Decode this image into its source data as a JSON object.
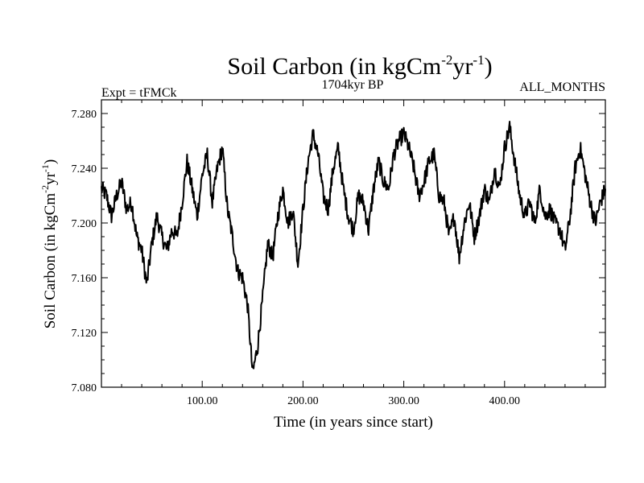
{
  "chart_data": {
    "type": "line",
    "title": "Soil Carbon (in kgCm",
    "title_sup1": "-2",
    "title_mid": "yr",
    "title_sup2": "-1",
    "title_end": ")",
    "subtitle_left": "Expt = tFMCk",
    "subtitle_center": "1704kyr BP",
    "subtitle_right": "ALL_MONTHS",
    "xlabel": "Time (in years since start)",
    "ylabel": "Soil Carbon (in kgCm",
    "ylabel_sup1": "-2",
    "ylabel_mid": "yr",
    "ylabel_sup2": "-1",
    "ylabel_end": ")",
    "xlim": [
      0,
      500
    ],
    "ylim": [
      7.08,
      7.29
    ],
    "x_ticks": [
      100,
      200,
      300,
      400
    ],
    "x_tick_labels": [
      "100.00",
      "200.00",
      "300.00",
      "400.00"
    ],
    "y_ticks": [
      7.08,
      7.12,
      7.16,
      7.2,
      7.24,
      7.28
    ],
    "y_tick_labels": [
      "7.080",
      "7.120",
      "7.160",
      "7.200",
      "7.240",
      "7.280"
    ],
    "grid": false,
    "line_color": "#000000",
    "series": [
      {
        "x": [
          0,
          5,
          10,
          15,
          20,
          25,
          30,
          35,
          40,
          45,
          50,
          55,
          60,
          65,
          70,
          75,
          80,
          85,
          90,
          95,
          100,
          105,
          110,
          115,
          120,
          125,
          130,
          135,
          140,
          145,
          150,
          155,
          160,
          165,
          170,
          175,
          180,
          185,
          190,
          195,
          200,
          205,
          210,
          215,
          220,
          225,
          230,
          235,
          240,
          245,
          250,
          255,
          260,
          265,
          270,
          275,
          280,
          285,
          290,
          295,
          300,
          305,
          310,
          315,
          320,
          325,
          330,
          335,
          340,
          345,
          350,
          355,
          360,
          365,
          370,
          375,
          380,
          385,
          390,
          395,
          400,
          405,
          410,
          415,
          420,
          425,
          430,
          435,
          440,
          445,
          450,
          455,
          460,
          465,
          470,
          475,
          480,
          485,
          490,
          495,
          500
        ],
        "values": [
          7.225,
          7.22,
          7.205,
          7.22,
          7.23,
          7.21,
          7.215,
          7.19,
          7.18,
          7.155,
          7.185,
          7.205,
          7.19,
          7.18,
          7.195,
          7.19,
          7.215,
          7.245,
          7.225,
          7.205,
          7.235,
          7.25,
          7.215,
          7.24,
          7.255,
          7.21,
          7.19,
          7.165,
          7.16,
          7.14,
          7.09,
          7.11,
          7.145,
          7.185,
          7.175,
          7.205,
          7.225,
          7.2,
          7.21,
          7.17,
          7.21,
          7.245,
          7.265,
          7.25,
          7.22,
          7.21,
          7.24,
          7.255,
          7.225,
          7.205,
          7.195,
          7.22,
          7.215,
          7.195,
          7.225,
          7.245,
          7.23,
          7.225,
          7.25,
          7.26,
          7.265,
          7.255,
          7.24,
          7.22,
          7.23,
          7.245,
          7.25,
          7.22,
          7.215,
          7.19,
          7.205,
          7.175,
          7.2,
          7.215,
          7.19,
          7.205,
          7.225,
          7.215,
          7.24,
          7.225,
          7.255,
          7.27,
          7.245,
          7.22,
          7.205,
          7.215,
          7.2,
          7.225,
          7.205,
          7.21,
          7.2,
          7.195,
          7.18,
          7.205,
          7.24,
          7.255,
          7.235,
          7.215,
          7.2,
          7.215,
          7.225
        ]
      }
    ]
  }
}
